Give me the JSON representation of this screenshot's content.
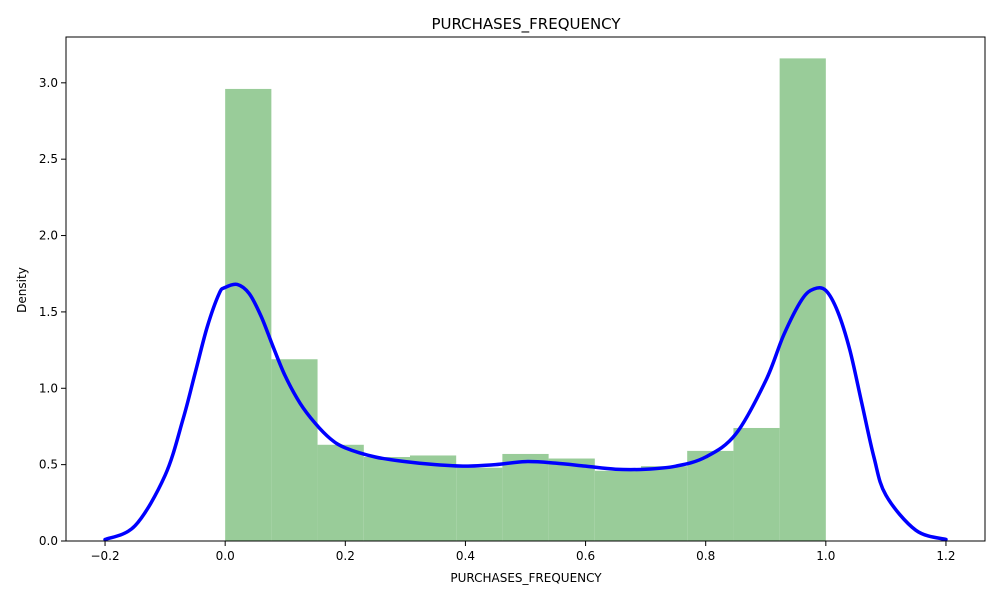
{
  "chart_data": {
    "type": "bar",
    "title": "PURCHASES_FREQUENCY",
    "xlabel": "PURCHASES_FREQUENCY",
    "ylabel": "Density",
    "xlim": [
      -0.265,
      1.265
    ],
    "ylim": [
      0,
      3.3
    ],
    "xticks": [
      -0.2,
      0.0,
      0.2,
      0.4,
      0.6,
      0.8,
      1.0,
      1.2
    ],
    "xtick_labels": [
      "−0.2",
      "0.0",
      "0.2",
      "0.4",
      "0.6",
      "0.8",
      "1.0",
      "1.2"
    ],
    "yticks": [
      0.0,
      0.5,
      1.0,
      1.5,
      2.0,
      2.5,
      3.0
    ],
    "ytick_labels": [
      "0.0",
      "0.5",
      "1.0",
      "1.5",
      "2.0",
      "2.5",
      "3.0"
    ],
    "grid": false,
    "histogram": {
      "name": "histogram",
      "color": "#99cc99",
      "bin_edges": [
        0.0,
        0.0769,
        0.1538,
        0.2308,
        0.3077,
        0.3846,
        0.4615,
        0.5385,
        0.6154,
        0.6923,
        0.7692,
        0.8462,
        0.9231,
        1.0
      ],
      "values": [
        2.96,
        1.19,
        0.63,
        0.55,
        0.56,
        0.48,
        0.57,
        0.54,
        0.46,
        0.49,
        0.59,
        0.74,
        3.16
      ]
    },
    "kde": {
      "name": "kde",
      "color": "#0000ff",
      "x": [
        -0.2,
        -0.15,
        -0.1,
        -0.07,
        -0.05,
        -0.03,
        -0.01,
        0.0,
        0.02,
        0.04,
        0.06,
        0.08,
        0.1,
        0.125,
        0.15,
        0.175,
        0.2,
        0.25,
        0.3,
        0.35,
        0.4,
        0.45,
        0.5,
        0.55,
        0.6,
        0.65,
        0.7,
        0.75,
        0.8,
        0.85,
        0.9,
        0.93,
        0.96,
        0.98,
        1.0,
        1.02,
        1.04,
        1.06,
        1.08,
        1.1,
        1.15,
        1.2
      ],
      "y": [
        0.01,
        0.1,
        0.43,
        0.8,
        1.1,
        1.4,
        1.62,
        1.66,
        1.68,
        1.62,
        1.47,
        1.27,
        1.08,
        0.9,
        0.77,
        0.67,
        0.61,
        0.55,
        0.52,
        0.5,
        0.49,
        0.5,
        0.52,
        0.51,
        0.49,
        0.47,
        0.47,
        0.49,
        0.55,
        0.7,
        1.05,
        1.35,
        1.58,
        1.65,
        1.64,
        1.5,
        1.25,
        0.9,
        0.55,
        0.3,
        0.07,
        0.01
      ]
    }
  }
}
